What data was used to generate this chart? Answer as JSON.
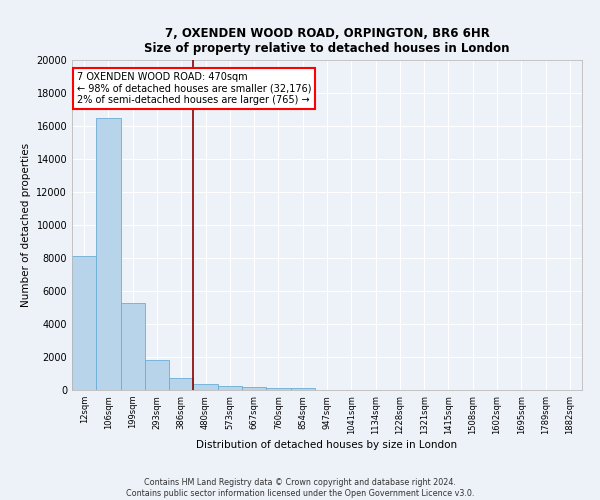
{
  "title1": "7, OXENDEN WOOD ROAD, ORPINGTON, BR6 6HR",
  "title2": "Size of property relative to detached houses in London",
  "xlabel": "Distribution of detached houses by size in London",
  "ylabel": "Number of detached properties",
  "categories": [
    "12sqm",
    "106sqm",
    "199sqm",
    "293sqm",
    "386sqm",
    "480sqm",
    "573sqm",
    "667sqm",
    "760sqm",
    "854sqm",
    "947sqm",
    "1041sqm",
    "1134sqm",
    "1228sqm",
    "1321sqm",
    "1415sqm",
    "1508sqm",
    "1602sqm",
    "1695sqm",
    "1789sqm",
    "1882sqm"
  ],
  "values": [
    8100,
    16500,
    5300,
    1800,
    700,
    380,
    240,
    190,
    140,
    100,
    0,
    0,
    0,
    0,
    0,
    0,
    0,
    0,
    0,
    0,
    0
  ],
  "bar_color": "#b8d4ea",
  "bar_edge_color": "#6aaed6",
  "vline_x": 4.5,
  "vline_color": "#8b0000",
  "annotation_text": "7 OXENDEN WOOD ROAD: 470sqm\n← 98% of detached houses are smaller (32,176)\n2% of semi-detached houses are larger (765) →",
  "annotation_box_color": "white",
  "annotation_box_edge": "red",
  "ylim": [
    0,
    20000
  ],
  "yticks": [
    0,
    2000,
    4000,
    6000,
    8000,
    10000,
    12000,
    14000,
    16000,
    18000,
    20000
  ],
  "footer1": "Contains HM Land Registry data © Crown copyright and database right 2024.",
  "footer2": "Contains public sector information licensed under the Open Government Licence v3.0.",
  "bg_color": "#edf2f8",
  "plot_bg_color": "#edf2f8"
}
